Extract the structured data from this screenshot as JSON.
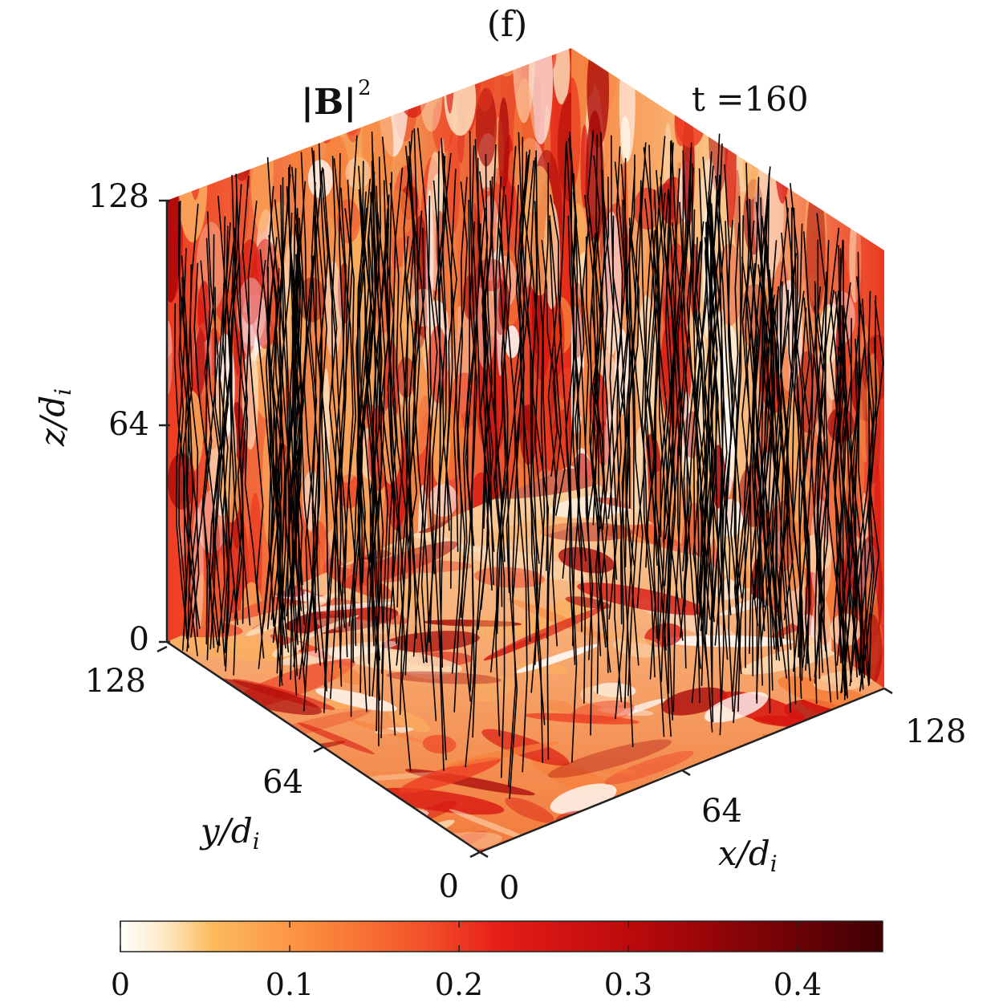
{
  "panel_label": "(f)",
  "field_label": "|B|",
  "field_label_exp": "2",
  "time_label": "t =160",
  "axes": {
    "z": {
      "label_main": "z/d",
      "label_sub": "i",
      "ticks": [
        "0",
        "64",
        "128"
      ]
    },
    "y": {
      "label_main": "y/d",
      "label_sub": "i",
      "ticks": [
        "0",
        "64",
        "128"
      ]
    },
    "x": {
      "label_main": "x/d",
      "label_sub": "i",
      "ticks": [
        "0",
        "64",
        "128"
      ]
    }
  },
  "colorbar": {
    "ticks": [
      "0",
      "0.1",
      "0.2",
      "0.3",
      "0.4"
    ],
    "tick_values": [
      0,
      0.1,
      0.2,
      0.3,
      0.4
    ],
    "range": [
      0,
      0.45
    ],
    "colormap": [
      "#ffffff",
      "#fde8c4",
      "#fdbb5e",
      "#fb8c3c",
      "#f4502a",
      "#e51d17",
      "#b8090b",
      "#7a0306",
      "#3d0004"
    ]
  },
  "colors": {
    "field_lines": "#000000",
    "hot": "#e51d17",
    "warm": "#f88a3a",
    "light": "#fde3c0"
  }
}
